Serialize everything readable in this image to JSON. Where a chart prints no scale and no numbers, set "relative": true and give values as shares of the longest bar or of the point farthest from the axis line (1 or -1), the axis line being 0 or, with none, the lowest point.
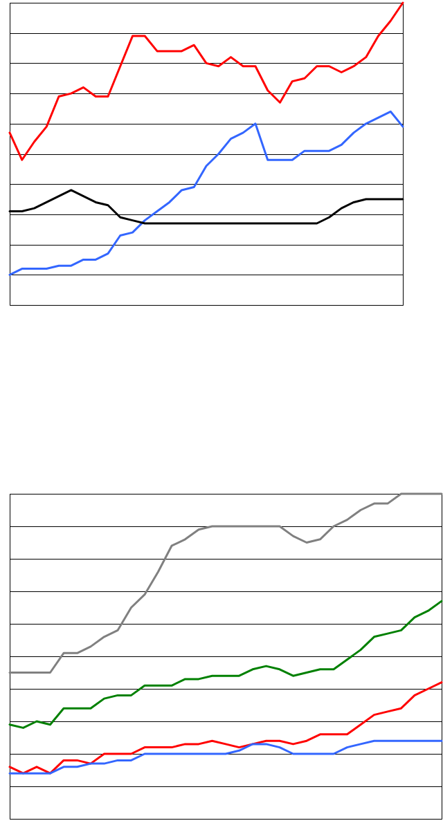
{
  "chart_data": [
    {
      "type": "line",
      "relative": true,
      "grid": "y",
      "legend": false,
      "categories": [
        null,
        null,
        null,
        null,
        null,
        null,
        null,
        null,
        null,
        null,
        null,
        null,
        null,
        null,
        null,
        null,
        null,
        null,
        null,
        null,
        null,
        null,
        null,
        null,
        null,
        null,
        null,
        null,
        null,
        null,
        null,
        null,
        null
      ],
      "series": [
        {
          "color": "#ff0000",
          "values": [
            0.57,
            0.48,
            0.54,
            0.59,
            0.69,
            0.7,
            0.72,
            0.69,
            0.69,
            0.79,
            0.89,
            0.89,
            0.84,
            0.84,
            0.84,
            0.86,
            0.8,
            0.79,
            0.82,
            0.79,
            0.79,
            0.71,
            0.67,
            0.74,
            0.75,
            0.79,
            0.79,
            0.77,
            0.79,
            0.82,
            0.89,
            0.94,
            1
          ]
        },
        {
          "color": "#3366ff",
          "values": [
            0.1,
            0.12,
            0.12,
            0.12,
            0.13,
            0.13,
            0.15,
            0.15,
            0.17,
            0.23,
            0.24,
            0.28,
            0.31,
            0.34,
            0.38,
            0.39,
            0.46,
            0.5,
            0.55,
            0.57,
            0.6,
            0.48,
            0.48,
            0.48,
            0.51,
            0.51,
            0.51,
            0.53,
            0.57,
            0.6,
            0.62,
            0.64,
            0.59
          ]
        },
        {
          "color": "#000000",
          "values": [
            0.31,
            0.31,
            0.32,
            0.34,
            0.36,
            0.38,
            0.36,
            0.34,
            0.33,
            0.29,
            0.28,
            0.27,
            0.27,
            0.27,
            0.27,
            0.27,
            0.27,
            0.27,
            0.27,
            0.27,
            0.27,
            0.27,
            0.27,
            0.27,
            0.27,
            0.27,
            0.29,
            0.32,
            0.34,
            0.35,
            0.35,
            0.35,
            0.35
          ]
        }
      ]
    },
    {
      "type": "line",
      "relative": true,
      "grid": "y",
      "legend": false,
      "categories": [
        null,
        null,
        null,
        null,
        null,
        null,
        null,
        null,
        null,
        null,
        null,
        null,
        null,
        null,
        null,
        null,
        null,
        null,
        null,
        null,
        null,
        null,
        null,
        null,
        null,
        null,
        null,
        null,
        null,
        null,
        null,
        null,
        null
      ],
      "series": [
        {
          "color": "#808080",
          "values": [
            0.45,
            0.45,
            0.45,
            0.45,
            0.51,
            0.51,
            0.53,
            0.56,
            0.58,
            0.65,
            0.69,
            0.76,
            0.84,
            0.86,
            0.89,
            0.9,
            0.9,
            0.9,
            0.9,
            0.9,
            0.9,
            0.87,
            0.85,
            0.86,
            0.9,
            0.92,
            0.95,
            0.97,
            0.97,
            1,
            1,
            1,
            1
          ]
        },
        {
          "color": "#008000",
          "values": [
            0.29,
            0.28,
            0.3,
            0.29,
            0.34,
            0.34,
            0.34,
            0.37,
            0.38,
            0.38,
            0.41,
            0.41,
            0.41,
            0.43,
            0.43,
            0.44,
            0.44,
            0.44,
            0.46,
            0.47,
            0.46,
            0.44,
            0.45,
            0.46,
            0.46,
            0.49,
            0.52,
            0.56,
            0.57,
            0.58,
            0.62,
            0.64,
            0.67
          ]
        },
        {
          "color": "#ff0000",
          "values": [
            0.16,
            0.14,
            0.16,
            0.14,
            0.18,
            0.18,
            0.17,
            0.2,
            0.2,
            0.2,
            0.22,
            0.22,
            0.22,
            0.23,
            0.23,
            0.24,
            0.23,
            0.22,
            0.23,
            0.24,
            0.24,
            0.23,
            0.24,
            0.26,
            0.26,
            0.26,
            0.29,
            0.32,
            0.33,
            0.34,
            0.38,
            0.4,
            0.42
          ]
        },
        {
          "color": "#3366ff",
          "values": [
            0.14,
            0.14,
            0.14,
            0.14,
            0.16,
            0.16,
            0.17,
            0.17,
            0.18,
            0.18,
            0.2,
            0.2,
            0.2,
            0.2,
            0.2,
            0.2,
            0.2,
            0.21,
            0.23,
            0.23,
            0.22,
            0.2,
            0.2,
            0.2,
            0.2,
            0.22,
            0.23,
            0.24,
            0.24,
            0.24,
            0.24,
            0.24,
            0.24
          ]
        }
      ]
    }
  ]
}
